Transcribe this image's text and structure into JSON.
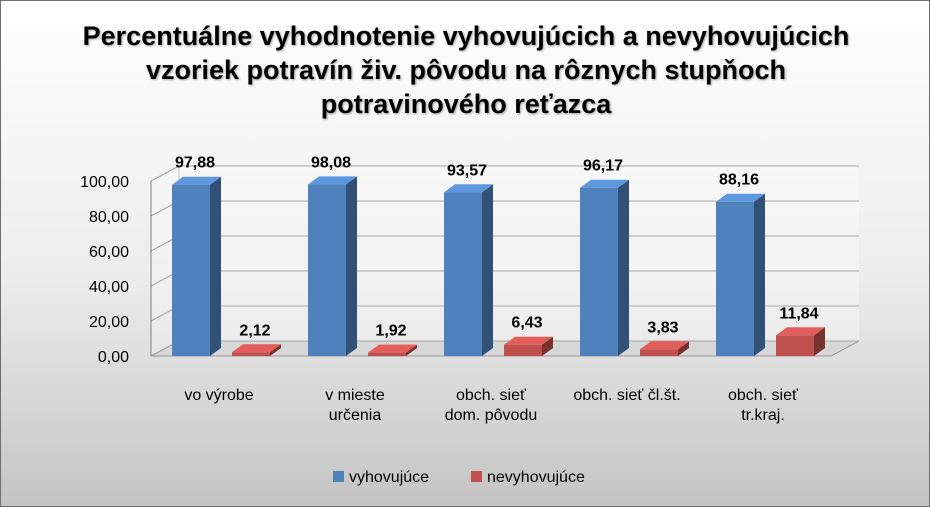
{
  "chart_data": {
    "type": "bar",
    "title": "Percentuálne vyhodnotenie vyhovujúcich a nevyhovujúcich\nvzoriek potravín živ. pôvodu na rôznych stupňoch\npotravinového reťazca",
    "categories": [
      [
        "vo výrobe"
      ],
      [
        "v mieste",
        "určenia"
      ],
      [
        "obch. sieť",
        "dom. pôvodu"
      ],
      [
        "obch. sieť čl.št."
      ],
      [
        "obch. sieť",
        "tr.kraj."
      ]
    ],
    "series": [
      {
        "name": "vyhovujúce",
        "color": "#4f81bd",
        "values": [
          97.88,
          98.08,
          93.57,
          96.17,
          88.16
        ],
        "value_labels": [
          "97,88",
          "98,08",
          "93,57",
          "96,17",
          "88,16"
        ]
      },
      {
        "name": "nevyhovujúce",
        "color": "#c0504d",
        "values": [
          2.12,
          1.92,
          6.43,
          3.83,
          11.84
        ],
        "value_labels": [
          "2,12",
          "1,92",
          "6,43",
          "3,83",
          "11,84"
        ]
      }
    ],
    "ylim": [
      0,
      100
    ],
    "yticks": [
      "0,00",
      "20,00",
      "40,00",
      "60,00",
      "80,00",
      "100,00"
    ],
    "xlabel": "",
    "ylabel": "",
    "grid": true,
    "legend_position": "bottom"
  }
}
